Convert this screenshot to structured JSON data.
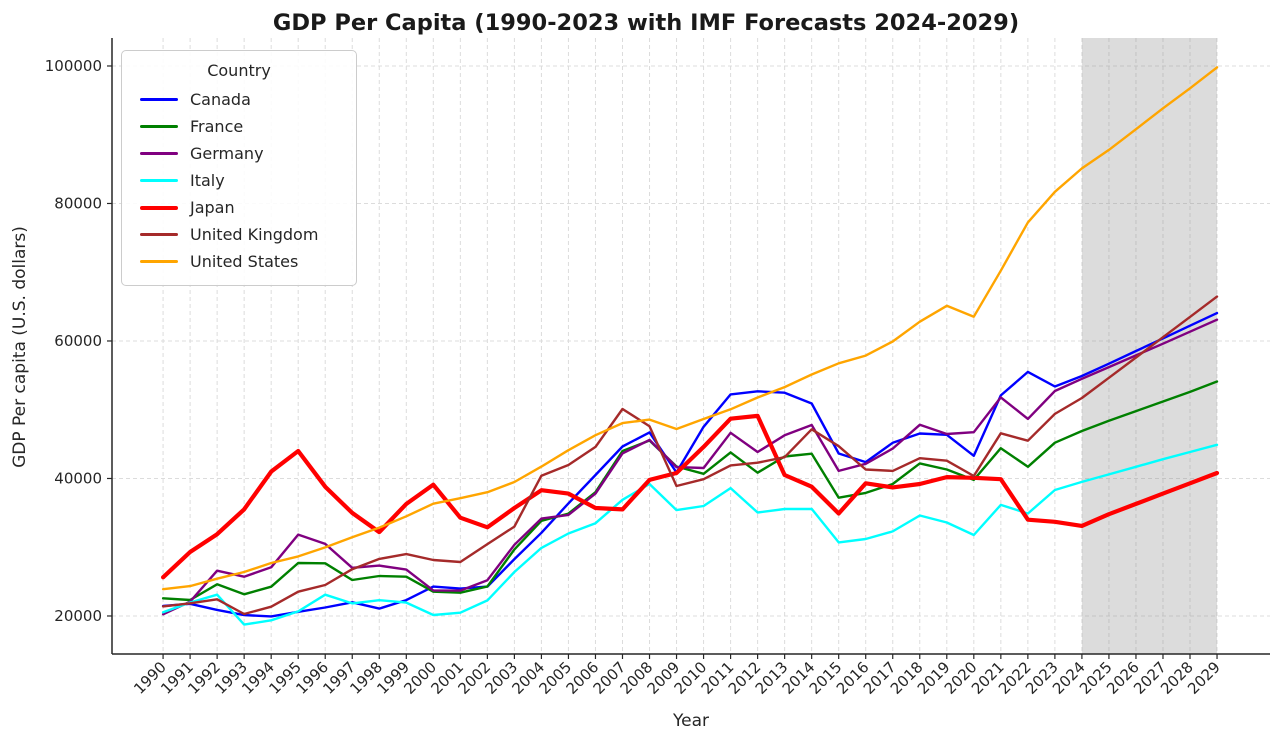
{
  "title": "GDP Per Capita (1990-2023 with IMF Forecasts 2024-2029)",
  "axes": {
    "x_label": "Year",
    "y_label": "GDP Per capita (U.S. dollars)",
    "y_ticks": [
      20000,
      40000,
      60000,
      80000,
      100000
    ]
  },
  "legend": {
    "title": "Country"
  },
  "styles": {
    "grid_color": "#dcdcdc",
    "band_color": "#8c8c8c",
    "band_opacity": 0.3,
    "spine_color": "#262626",
    "text_color": "#262626",
    "title_color": "#1a1a1a",
    "background": "#ffffff"
  },
  "chart_data": {
    "type": "line",
    "title": "GDP Per Capita (1990-2023 with IMF Forecasts 2024-2029)",
    "xlabel": "Year",
    "ylabel": "GDP Per capita (U.S. dollars)",
    "grid": true,
    "legend_position": "upper left",
    "xlim": [
      1988.11,
      2030.96
    ],
    "ylim": [
      14470,
      104070
    ],
    "y_ticks": [
      20000,
      40000,
      60000,
      80000,
      100000
    ],
    "forecast_region": {
      "start": 2024,
      "end": 2029,
      "source": "IMF Forecasts"
    },
    "x": [
      1990,
      1991,
      1992,
      1993,
      1994,
      1995,
      1996,
      1997,
      1998,
      1999,
      2000,
      2001,
      2002,
      2003,
      2004,
      2005,
      2006,
      2007,
      2008,
      2009,
      2010,
      2011,
      2012,
      2013,
      2014,
      2015,
      2016,
      2017,
      2018,
      2019,
      2020,
      2021,
      2022,
      2023,
      2024,
      2025,
      2026,
      2027,
      2028,
      2029
    ],
    "series": [
      {
        "name": "Canada",
        "color": "#0000ff",
        "line_width": 2.4,
        "values": [
          21449,
          21768,
          20880,
          20121,
          19935,
          20613,
          21227,
          21992,
          21073,
          22316,
          24271,
          23977,
          24269,
          28272,
          32101,
          36382,
          40504,
          44659,
          46710,
          40879,
          47513,
          52223,
          52678,
          52481,
          50905,
          43629,
          42385,
          45190,
          46548,
          46352,
          43295,
          52087,
          55509,
          53372,
          54900,
          56700,
          58540,
          60380,
          62220,
          64060
        ]
      },
      {
        "name": "France",
        "color": "#008000",
        "line_width": 2.4,
        "values": [
          22570,
          22330,
          24610,
          23160,
          24260,
          27700,
          27660,
          25240,
          25820,
          25720,
          23530,
          23390,
          24300,
          29690,
          33850,
          34890,
          38000,
          44000,
          45520,
          41740,
          40680,
          43790,
          40840,
          43200,
          43600,
          37200,
          37900,
          39200,
          42200,
          41300,
          39800,
          44400,
          41700,
          45200,
          46900,
          48400,
          49800,
          51200,
          52600,
          54100
        ]
      },
      {
        "name": "Germany",
        "color": "#800080",
        "line_width": 2.4,
        "values": [
          20240,
          22080,
          26590,
          25720,
          27080,
          31830,
          30490,
          27010,
          27330,
          26750,
          23720,
          23690,
          25210,
          30360,
          34170,
          34700,
          37800,
          43650,
          45610,
          41650,
          41530,
          46645,
          43858,
          46286,
          47780,
          41103,
          42136,
          44350,
          47811,
          46468,
          46735,
          51800,
          48660,
          52727,
          54500,
          56200,
          57900,
          59600,
          61350,
          63100
        ]
      },
      {
        "name": "Italy",
        "color": "#00ffff",
        "line_width": 2.4,
        "values": [
          20540,
          21960,
          23100,
          18740,
          19370,
          20660,
          23100,
          21830,
          22290,
          21950,
          20150,
          20480,
          22270,
          26400,
          29900,
          32000,
          33500,
          36900,
          39200,
          35400,
          36000,
          38600,
          35050,
          35560,
          35570,
          30700,
          31200,
          32300,
          34620,
          33600,
          31780,
          36150,
          34900,
          38330,
          39500,
          40600,
          41700,
          42800,
          43850,
          44900
        ]
      },
      {
        "name": "Japan",
        "color": "#ff0000",
        "line_width": 4.2,
        "values": [
          25630,
          29300,
          31900,
          35500,
          41000,
          44000,
          38800,
          35000,
          32200,
          36300,
          39100,
          34300,
          32900,
          35700,
          38300,
          37800,
          35700,
          35500,
          39800,
          40800,
          44600,
          48700,
          49100,
          40500,
          38800,
          34900,
          39300,
          38700,
          39200,
          40200,
          40100,
          39900,
          34000,
          33700,
          33100,
          34800,
          36300,
          37800,
          39300,
          40800
        ]
      },
      {
        "name": "United Kingdom",
        "color": "#a52a2a",
        "line_width": 2.4,
        "values": [
          21400,
          21850,
          22430,
          20290,
          21350,
          23530,
          24510,
          26800,
          28300,
          29000,
          28150,
          27850,
          30460,
          33000,
          40410,
          41960,
          44600,
          50100,
          47600,
          38910,
          39900,
          41900,
          42300,
          43100,
          47150,
          44700,
          41300,
          41100,
          42950,
          42590,
          40360,
          46570,
          45500,
          49400,
          51700,
          54650,
          57600,
          60550,
          63500,
          66450
        ]
      },
      {
        "name": "United States",
        "color": "#ffa500",
        "line_width": 2.4,
        "values": [
          23890,
          24340,
          25420,
          26390,
          27700,
          28670,
          29970,
          31460,
          32850,
          34500,
          36330,
          37130,
          38000,
          39490,
          41730,
          44120,
          46300,
          48050,
          48570,
          47200,
          48650,
          50070,
          51780,
          53290,
          55120,
          56760,
          57870,
          59920,
          62800,
          65120,
          63530,
          70220,
          77250,
          81700,
          85100,
          87800,
          90800,
          93850,
          96750,
          99800
        ]
      }
    ]
  }
}
